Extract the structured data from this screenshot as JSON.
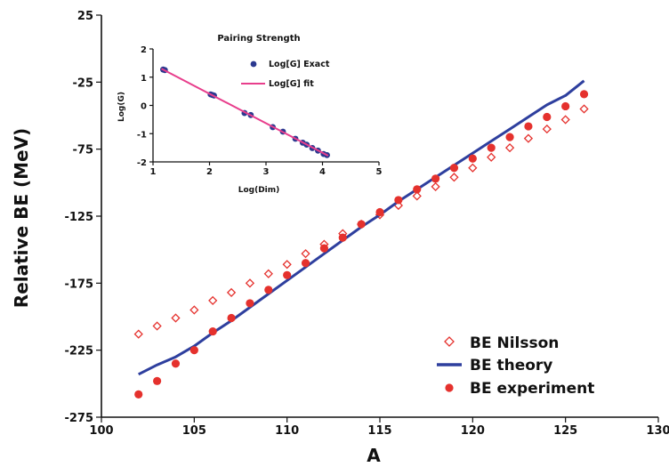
{
  "chart_data": [
    {
      "type": "scatter",
      "xlabel": "A",
      "ylabel": "Relative BE (MeV)",
      "xlim": [
        100,
        130
      ],
      "ylim": [
        -275,
        25
      ],
      "x_ticks": [
        "100",
        "105",
        "110",
        "115",
        "120",
        "125",
        "130"
      ],
      "y_ticks": [
        "25",
        "-25",
        "-75",
        "-125",
        "-175",
        "-225",
        "-275"
      ],
      "legend_position": "bottom-right",
      "grid": false,
      "series": [
        {
          "name": "BE Nilsson",
          "marker": "open-diamond",
          "color": "#e5312d",
          "points": [
            [
              102,
              -213
            ],
            [
              103,
              -207
            ],
            [
              104,
              -201
            ],
            [
              105,
              -195
            ],
            [
              106,
              -188
            ],
            [
              107,
              -182
            ],
            [
              108,
              -175
            ],
            [
              109,
              -168
            ],
            [
              110,
              -161
            ],
            [
              111,
              -153
            ],
            [
              112,
              -146
            ],
            [
              113,
              -138
            ],
            [
              114,
              -131
            ],
            [
              115,
              -124
            ],
            [
              116,
              -117
            ],
            [
              117,
              -110
            ],
            [
              118,
              -103
            ],
            [
              119,
              -96
            ],
            [
              120,
              -89
            ],
            [
              121,
              -81
            ],
            [
              122,
              -74
            ],
            [
              123,
              -67
            ],
            [
              124,
              -60
            ],
            [
              125,
              -53
            ],
            [
              126,
              -45
            ]
          ]
        },
        {
          "name": "BE theory",
          "marker": "line",
          "color": "#2e3f9e",
          "points": [
            [
              102,
              -243
            ],
            [
              103,
              -236
            ],
            [
              104,
              -230
            ],
            [
              105,
              -222
            ],
            [
              106,
              -212
            ],
            [
              107,
              -203
            ],
            [
              108,
              -193
            ],
            [
              109,
              -183
            ],
            [
              110,
              -173
            ],
            [
              111,
              -163
            ],
            [
              112,
              -153
            ],
            [
              113,
              -143
            ],
            [
              114,
              -133
            ],
            [
              115,
              -124
            ],
            [
              116,
              -114
            ],
            [
              117,
              -105
            ],
            [
              118,
              -96
            ],
            [
              119,
              -87
            ],
            [
              120,
              -78
            ],
            [
              121,
              -69
            ],
            [
              122,
              -60
            ],
            [
              123,
              -51
            ],
            [
              124,
              -42
            ],
            [
              125,
              -35
            ],
            [
              126,
              -24
            ]
          ]
        },
        {
          "name": "BE experiment",
          "marker": "filled-circle",
          "color": "#e5312d",
          "points": [
            [
              102,
              -258
            ],
            [
              103,
              -248
            ],
            [
              104,
              -235
            ],
            [
              105,
              -225
            ],
            [
              106,
              -211
            ],
            [
              107,
              -201
            ],
            [
              108,
              -190
            ],
            [
              109,
              -180
            ],
            [
              110,
              -169
            ],
            [
              111,
              -160
            ],
            [
              112,
              -149
            ],
            [
              113,
              -141
            ],
            [
              114,
              -131
            ],
            [
              115,
              -122
            ],
            [
              116,
              -113
            ],
            [
              117,
              -105
            ],
            [
              118,
              -97
            ],
            [
              119,
              -89
            ],
            [
              120,
              -82
            ],
            [
              121,
              -74
            ],
            [
              122,
              -66
            ],
            [
              123,
              -58
            ],
            [
              124,
              -51
            ],
            [
              125,
              -43
            ],
            [
              126,
              -34
            ]
          ]
        }
      ]
    },
    {
      "type": "scatter",
      "title": "Pairing Strength",
      "xlabel": "Log(Dim)",
      "ylabel": "Log(G)",
      "xlim": [
        1,
        5
      ],
      "ylim": [
        -2,
        2
      ],
      "x_ticks": [
        "1",
        "2",
        "3",
        "4",
        "5"
      ],
      "y_ticks": [
        "2",
        "1",
        "0",
        "-1",
        "-2"
      ],
      "legend_position": "top-right",
      "grid": false,
      "series": [
        {
          "name": "Log[G] Exact",
          "marker": "filled-circle",
          "color": "#2b3990",
          "points": [
            [
              1.18,
              1.27
            ],
            [
              1.21,
              1.25
            ],
            [
              2.02,
              0.39
            ],
            [
              2.05,
              0.37
            ],
            [
              2.08,
              0.35
            ],
            [
              2.62,
              -0.27
            ],
            [
              2.73,
              -0.34
            ],
            [
              3.12,
              -0.77
            ],
            [
              3.3,
              -0.93
            ],
            [
              3.52,
              -1.18
            ],
            [
              3.65,
              -1.32
            ],
            [
              3.72,
              -1.39
            ],
            [
              3.82,
              -1.51
            ],
            [
              3.92,
              -1.6
            ],
            [
              4.02,
              -1.72
            ],
            [
              4.08,
              -1.76
            ]
          ]
        },
        {
          "name": "Log[G] fit",
          "marker": "line",
          "color": "#e83e8c",
          "points": [
            [
              1.15,
              1.3
            ],
            [
              4.1,
              -1.78
            ]
          ]
        }
      ]
    }
  ]
}
